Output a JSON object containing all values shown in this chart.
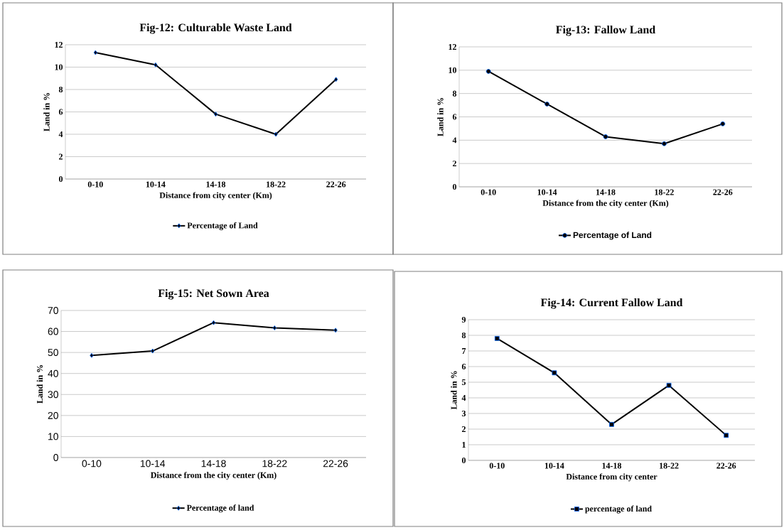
{
  "chart_data": [
    {
      "type": "line",
      "title": "Fig-12: Culturable Waste Land",
      "xlabel": "Distance from city center (Km)",
      "ylabel": "Land in %",
      "categories": [
        "0-10",
        "10-14",
        "14-18",
        "18-22",
        "22-26"
      ],
      "series": [
        {
          "name": "Percentage of Land",
          "color": "#000000",
          "values": [
            11.3,
            10.2,
            5.8,
            4.0,
            8.9
          ]
        }
      ],
      "ylim": [
        0,
        12
      ],
      "yticks": [
        0,
        2,
        4,
        6,
        8,
        10,
        12
      ],
      "grid": "y",
      "legend": "bottom",
      "marker": "diamond"
    },
    {
      "type": "line",
      "title": "Fig-13: Fallow Land",
      "xlabel": "Distance from the city center (Km)",
      "ylabel": "Land in %",
      "categories": [
        "0-10",
        "10-14",
        "14-18",
        "18-22",
        "22-26"
      ],
      "series": [
        {
          "name": "Percentage of Land",
          "color": "#000000",
          "values": [
            9.9,
            7.1,
            4.3,
            3.7,
            5.4
          ]
        }
      ],
      "ylim": [
        0,
        12
      ],
      "yticks": [
        0,
        2,
        4,
        6,
        8,
        10,
        12
      ],
      "grid": "y",
      "legend": "bottom",
      "marker": "circle"
    },
    {
      "type": "line",
      "title": "Fig-15: Net Sown Area",
      "xlabel": "Distance from the city center (Km)",
      "ylabel": "Land in %",
      "categories": [
        "0-10",
        "10-14",
        "14-18",
        "18-22",
        "22-26"
      ],
      "series": [
        {
          "name": "Percentage of land",
          "color": "#000000",
          "values": [
            48.6,
            50.7,
            64.2,
            61.7,
            60.6
          ]
        }
      ],
      "ylim": [
        0,
        70
      ],
      "yticks": [
        0,
        10,
        20,
        30,
        40,
        50,
        60,
        70
      ],
      "grid": "y",
      "legend": "bottom",
      "marker": "diamond"
    },
    {
      "type": "line",
      "title": "Fig-14: Current Fallow Land",
      "xlabel": "Distance from city center",
      "ylabel": "Land in %",
      "categories": [
        "0-10",
        "10-14",
        "14-18",
        "18-22",
        "22-26"
      ],
      "series": [
        {
          "name": "percentage of land",
          "color": "#000000",
          "values": [
            7.8,
            5.6,
            2.3,
            4.8,
            1.6
          ]
        }
      ],
      "ylim": [
        0,
        9
      ],
      "yticks": [
        0,
        1,
        2,
        3,
        4,
        5,
        6,
        7,
        8,
        9
      ],
      "grid": "y",
      "legend": "bottom",
      "marker": "square"
    }
  ]
}
